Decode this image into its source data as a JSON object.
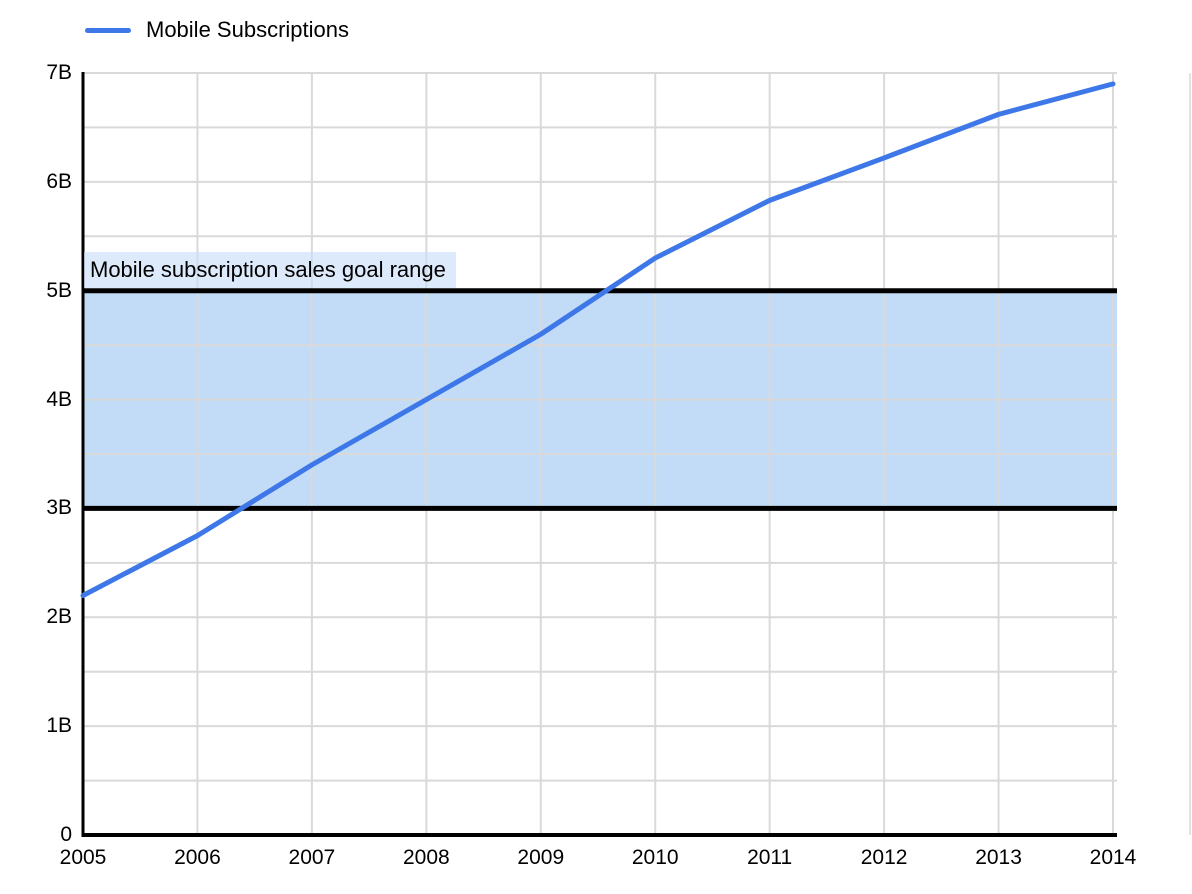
{
  "legend": {
    "label": "Mobile Subscriptions"
  },
  "chart_data": {
    "type": "line",
    "title": "",
    "xlabel": "",
    "ylabel": "",
    "categories": [
      "2005",
      "2006",
      "2007",
      "2008",
      "2009",
      "2010",
      "2011",
      "2012",
      "2013",
      "2014"
    ],
    "x": [
      2005,
      2006,
      2007,
      2008,
      2009,
      2010,
      2011,
      2012,
      2013,
      2014
    ],
    "series": [
      {
        "name": "Mobile Subscriptions",
        "color": "#3e78e8",
        "values": [
          2.2,
          2.75,
          3.4,
          4.0,
          4.6,
          5.3,
          5.83,
          6.22,
          6.62,
          6.9
        ]
      }
    ],
    "y_unit": "billions",
    "y_tick_labels": [
      "0",
      "1B",
      "2B",
      "3B",
      "4B",
      "5B",
      "6B",
      "7B"
    ],
    "ylim": [
      0,
      7
    ],
    "xlim": [
      2005,
      2014
    ],
    "grid": {
      "y_interval": 0.5,
      "x_interval": 1,
      "color": "#d9d9d9",
      "visible": true
    },
    "goal_band": {
      "label": "Mobile subscription sales goal range",
      "from": 3,
      "to": 5,
      "fill": "#c2dcf8",
      "border_color": "#000000",
      "label_background": "rgba(200,221,250,0.62)"
    },
    "legend_position": "top-left",
    "axis_color": "#000000"
  }
}
